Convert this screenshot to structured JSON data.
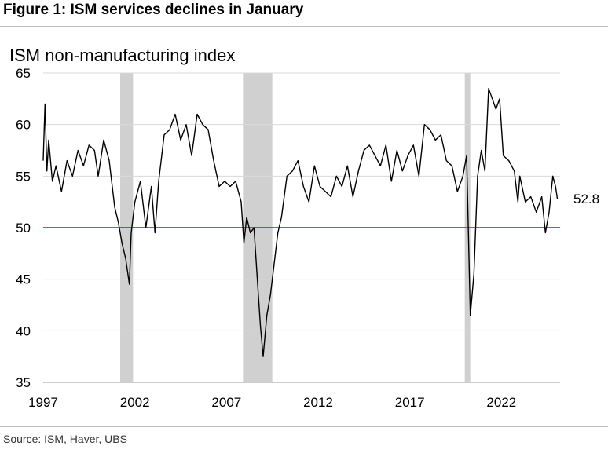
{
  "figure_title": "Figure 1: ISM services declines in January",
  "source": "Source: ISM, Haver, UBS",
  "colors": {
    "line": "#000000",
    "reference": "#e00000",
    "recession": "#d0d0d0",
    "grid": "#d9d9d9"
  },
  "chart_data": {
    "type": "line",
    "title": "ISM non-manufacturing index",
    "xlabel": "",
    "ylabel": "",
    "xlim": [
      1997,
      2025.2
    ],
    "ylim": [
      35,
      65
    ],
    "x_ticks": [
      1997,
      2002,
      2007,
      2012,
      2017,
      2022
    ],
    "y_ticks": [
      35,
      40,
      45,
      50,
      55,
      60,
      65
    ],
    "grid": "horizontal",
    "reference_line": 50,
    "last_value_label": "52.8",
    "recessions": [
      [
        2001.2,
        2001.9
      ],
      [
        2007.9,
        2009.5
      ],
      [
        2020.0,
        2020.3
      ]
    ],
    "series": [
      {
        "x": [
          1997.0,
          1997.1,
          1997.2,
          1997.3,
          1997.5,
          1997.7,
          1998.0,
          1998.3,
          1998.6,
          1998.9,
          1999.2,
          1999.5,
          1999.8,
          2000.0,
          2000.3,
          2000.6,
          2000.9,
          2001.1,
          2001.3,
          2001.5,
          2001.7,
          2001.8,
          2002.0,
          2002.3,
          2002.6,
          2002.9,
          2003.1,
          2003.3,
          2003.6,
          2003.9,
          2004.2,
          2004.5,
          2004.8,
          2005.1,
          2005.4,
          2005.7,
          2006.0,
          2006.3,
          2006.6,
          2006.9,
          2007.2,
          2007.5,
          2007.8,
          2007.95,
          2008.1,
          2008.3,
          2008.5,
          2008.7,
          2008.85,
          2009.0,
          2009.2,
          2009.4,
          2009.6,
          2009.8,
          2010.0,
          2010.3,
          2010.6,
          2010.9,
          2011.2,
          2011.5,
          2011.8,
          2012.1,
          2012.4,
          2012.7,
          2013.0,
          2013.3,
          2013.6,
          2013.9,
          2014.2,
          2014.5,
          2014.8,
          2015.1,
          2015.4,
          2015.7,
          2016.0,
          2016.3,
          2016.6,
          2016.9,
          2017.2,
          2017.5,
          2017.8,
          2018.1,
          2018.4,
          2018.7,
          2019.0,
          2019.3,
          2019.6,
          2019.9,
          2020.1,
          2020.3,
          2020.5,
          2020.7,
          2020.9,
          2021.1,
          2021.3,
          2021.5,
          2021.7,
          2021.9,
          2022.1,
          2022.4,
          2022.7,
          2022.9,
          2023.0,
          2023.3,
          2023.6,
          2023.9,
          2024.2,
          2024.4,
          2024.6,
          2024.8,
          2024.95,
          2025.05
        ],
        "values": [
          56.5,
          62.0,
          55.5,
          58.5,
          54.5,
          56.0,
          53.5,
          56.5,
          55.0,
          57.5,
          56.0,
          58.0,
          57.5,
          55.0,
          58.5,
          56.5,
          52.0,
          50.5,
          48.5,
          47.0,
          44.5,
          49.5,
          52.5,
          54.5,
          50.0,
          54.0,
          49.5,
          54.5,
          59.0,
          59.5,
          61.0,
          58.5,
          60.0,
          57.0,
          61.0,
          60.0,
          59.5,
          56.5,
          54.0,
          54.5,
          54.0,
          54.5,
          52.5,
          48.5,
          51.0,
          49.5,
          50.0,
          44.5,
          40.5,
          37.5,
          41.5,
          43.5,
          46.5,
          49.5,
          51.0,
          55.0,
          55.5,
          56.5,
          54.0,
          52.5,
          56.0,
          54.0,
          53.5,
          53.0,
          55.0,
          54.0,
          56.0,
          53.0,
          55.5,
          57.5,
          58.0,
          57.0,
          56.0,
          58.0,
          54.5,
          57.5,
          55.5,
          57.0,
          58.0,
          55.0,
          60.0,
          59.5,
          58.5,
          59.0,
          56.5,
          56.0,
          53.5,
          55.0,
          57.0,
          41.5,
          45.5,
          55.0,
          57.5,
          55.5,
          63.5,
          62.5,
          61.5,
          62.5,
          57.0,
          56.5,
          55.5,
          52.5,
          55.0,
          52.5,
          53.0,
          51.5,
          53.0,
          49.5,
          51.5,
          55.0,
          54.0,
          52.8
        ]
      }
    ]
  }
}
